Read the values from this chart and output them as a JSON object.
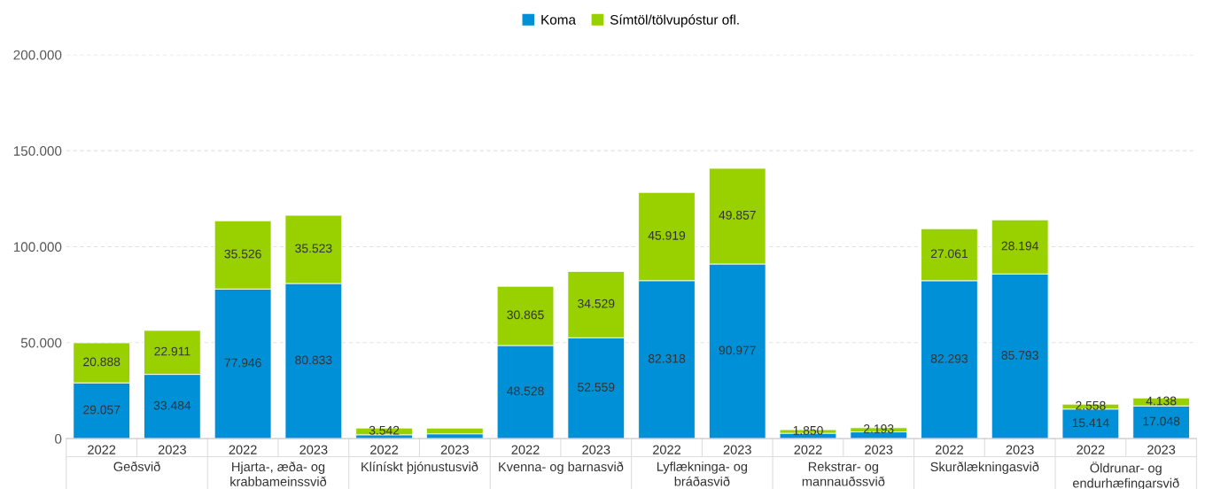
{
  "chart_data": {
    "type": "bar",
    "stacked": true,
    "categories": [
      "2022",
      "2023",
      "2022",
      "2023",
      "2022",
      "2023",
      "2022",
      "2023",
      "2022",
      "2023",
      "2022",
      "2023",
      "2022",
      "2023",
      "2022",
      "2023"
    ],
    "series": [
      {
        "name": "Koma",
        "color": "#0090d8",
        "values": [
          29057,
          33484,
          77946,
          80833,
          2000,
          2500,
          48528,
          52559,
          82318,
          90977,
          2800,
          3500,
          82293,
          85793,
          15414,
          17048
        ],
        "value_labels": [
          "29.057",
          "33.484",
          "77.946",
          "80.833",
          null,
          null,
          "48.528",
          "52.559",
          "82.318",
          "90.977",
          null,
          null,
          "82.293",
          "85.793",
          "15.414",
          "17.048"
        ]
      },
      {
        "name": "Símtöl/tölvupóstur ofl.",
        "color": "#99d100",
        "values": [
          20888,
          22911,
          35526,
          35523,
          3542,
          3000,
          30865,
          34529,
          45919,
          49857,
          1850,
          2193,
          27061,
          28194,
          2558,
          4138
        ],
        "value_labels": [
          "20.888",
          "22.911",
          "35.526",
          "35.523",
          "3.542",
          null,
          "30.865",
          "34.529",
          "45.919",
          "49.857",
          "1.850",
          "2.193",
          "27.061",
          "28.194",
          "2.558",
          "4.138"
        ]
      }
    ],
    "ylim": [
      0,
      200000
    ],
    "yticks": [
      {
        "value": 0,
        "label": "0"
      },
      {
        "value": 50000,
        "label": "50.000"
      },
      {
        "value": 100000,
        "label": "100.000"
      },
      {
        "value": 150000,
        "label": "150.000"
      },
      {
        "value": 200000,
        "label": "200.000"
      }
    ],
    "grid": "y",
    "legend": "top",
    "annotations": [
      "Geðsvið",
      "Hjarta-, æða- og\nkrabbameinssvið",
      "Klínískt þjónustusvið",
      "Kvenna- og barnasvið",
      "Lyflækninga- og\nbráðasvið",
      "Rekstrar- og\nmannauðssvið",
      "Skurðlækningasvið",
      "Öldrunar- og\nendurhæfingarsvið"
    ]
  }
}
